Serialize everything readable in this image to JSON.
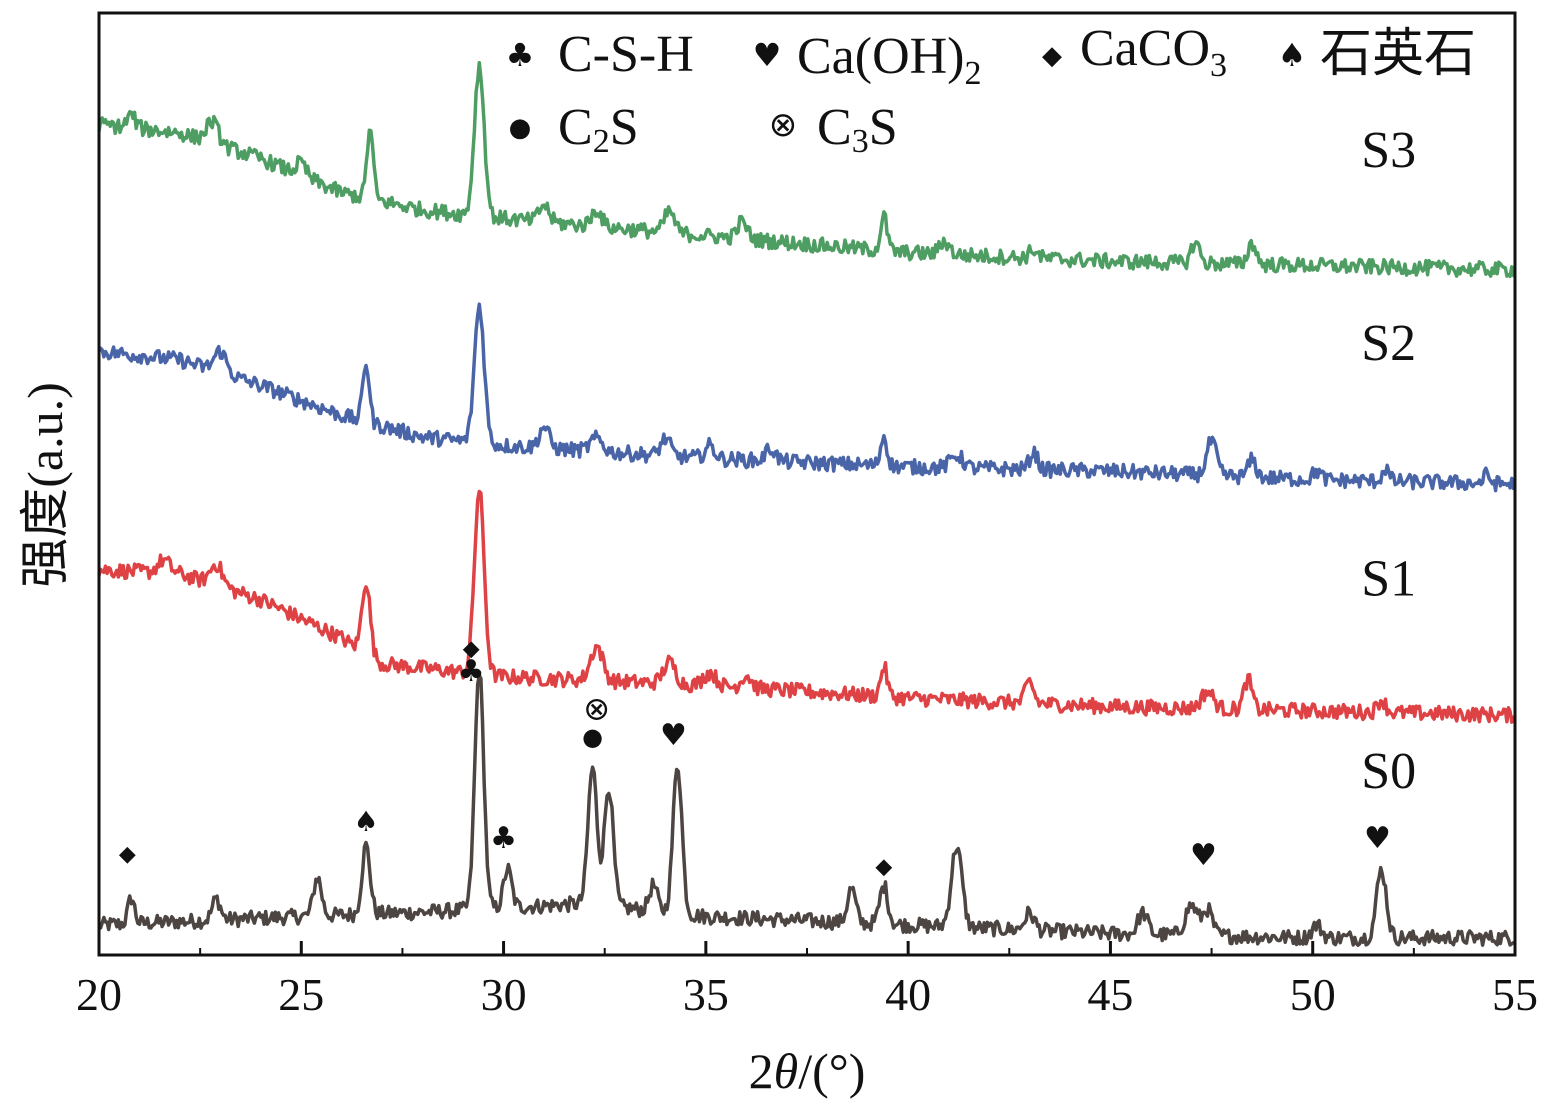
{
  "chart_data": {
    "type": "line",
    "xlabel_prefix": "2",
    "xlabel_theta": "θ",
    "xlabel_suffix": "/(°)",
    "ylabel": "强度(a.u.)",
    "xlim": [
      20,
      55
    ],
    "xticks": [
      20,
      25,
      30,
      35,
      40,
      45,
      50,
      55
    ],
    "grid": false,
    "legend": {
      "placement": "top",
      "entries": [
        {
          "symbol": "♣",
          "label": "C-S-H",
          "main": "C-S-H",
          "sub": ""
        },
        {
          "symbol": "♥",
          "label": "Ca(OH)2",
          "main": "Ca(OH)",
          "sub": "2"
        },
        {
          "symbol": "◆",
          "label": "CaCO3",
          "main": "CaCO",
          "sub": "3"
        },
        {
          "symbol": "♠",
          "label": "石英石",
          "main": "石英石",
          "sub": ""
        },
        {
          "symbol": "●",
          "label": "C2S",
          "main": "C",
          "sub": "2",
          "tail": "S"
        },
        {
          "symbol": "⊗",
          "label": "C3S",
          "main": "C",
          "sub": "3",
          "tail": "S"
        }
      ]
    },
    "series": [
      {
        "name": "S0",
        "color": "#4d4542",
        "offset": 0,
        "noise": 0.35,
        "baseline": [
          [
            20,
            0.7
          ],
          [
            25,
            0.9
          ],
          [
            28,
            1.0
          ],
          [
            32,
            1.2
          ],
          [
            35,
            0.9
          ],
          [
            40,
            0.7
          ],
          [
            45,
            0.5
          ],
          [
            50,
            0.4
          ],
          [
            55,
            0.4
          ]
        ],
        "peaks": [
          [
            20.8,
            0.6,
            0.08
          ],
          [
            22.9,
            0.5,
            0.1
          ],
          [
            25.4,
            0.9,
            0.1
          ],
          [
            26.6,
            1.6,
            0.1
          ],
          [
            29.4,
            5.6,
            0.11
          ],
          [
            30.1,
            0.9,
            0.1
          ],
          [
            32.2,
            3.2,
            0.11
          ],
          [
            32.6,
            2.8,
            0.11
          ],
          [
            33.7,
            0.6,
            0.1
          ],
          [
            34.3,
            3.5,
            0.11
          ],
          [
            38.6,
            0.8,
            0.1
          ],
          [
            39.4,
            0.9,
            0.1
          ],
          [
            41.2,
            1.9,
            0.13
          ],
          [
            43.0,
            0.4,
            0.12
          ],
          [
            45.8,
            0.5,
            0.12
          ],
          [
            47.0,
            0.7,
            0.15
          ],
          [
            47.4,
            0.6,
            0.12
          ],
          [
            50.1,
            0.3,
            0.12
          ],
          [
            51.7,
            1.6,
            0.12
          ]
        ]
      },
      {
        "name": "S1",
        "color": "#de4245",
        "offset": 5.5,
        "noise": 0.35,
        "baseline": [
          [
            20,
            3.5
          ],
          [
            22,
            3.4
          ],
          [
            24,
            2.8
          ],
          [
            26,
            1.9
          ],
          [
            27,
            1.3
          ],
          [
            30,
            1.0
          ],
          [
            35,
            0.8
          ],
          [
            40,
            0.5
          ],
          [
            45,
            0.3
          ],
          [
            50,
            0.2
          ],
          [
            55,
            0.1
          ]
        ],
        "peaks": [
          [
            21.6,
            0.3,
            0.15
          ],
          [
            22.9,
            0.5,
            0.15
          ],
          [
            26.6,
            1.7,
            0.1
          ],
          [
            29.4,
            4.3,
            0.12
          ],
          [
            32.3,
            0.8,
            0.15
          ],
          [
            34.1,
            0.5,
            0.15
          ],
          [
            35.1,
            0.3,
            0.15
          ],
          [
            36.0,
            0.3,
            0.12
          ],
          [
            39.4,
            0.7,
            0.08
          ],
          [
            43.0,
            0.5,
            0.1
          ],
          [
            47.4,
            0.4,
            0.15
          ],
          [
            48.4,
            0.7,
            0.1
          ],
          [
            51.7,
            0.3,
            0.1
          ]
        ]
      },
      {
        "name": "S2",
        "color": "#4a65a7",
        "offset": 11.0,
        "noise": 0.35,
        "baseline": [
          [
            20,
            3.1
          ],
          [
            22,
            2.9
          ],
          [
            24,
            2.3
          ],
          [
            26,
            1.6
          ],
          [
            28,
            1.1
          ],
          [
            30,
            0.9
          ],
          [
            35,
            0.6
          ],
          [
            40,
            0.4
          ],
          [
            45,
            0.3
          ],
          [
            50,
            0.1
          ],
          [
            55,
            0.0
          ]
        ],
        "peaks": [
          [
            23.0,
            0.5,
            0.15
          ],
          [
            26.6,
            1.4,
            0.08
          ],
          [
            29.4,
            3.2,
            0.12
          ],
          [
            31.0,
            0.5,
            0.12
          ],
          [
            32.3,
            0.3,
            0.15
          ],
          [
            34.0,
            0.4,
            0.12
          ],
          [
            35.1,
            0.3,
            0.12
          ],
          [
            36.6,
            0.3,
            0.12
          ],
          [
            39.4,
            0.7,
            0.08
          ],
          [
            41.2,
            0.3,
            0.15
          ],
          [
            43.1,
            0.4,
            0.1
          ],
          [
            47.5,
            0.8,
            0.12
          ],
          [
            48.5,
            0.4,
            0.1
          ],
          [
            50.1,
            0.2,
            0.1
          ],
          [
            51.8,
            0.3,
            0.08
          ],
          [
            54.3,
            0.2,
            0.08
          ]
        ]
      },
      {
        "name": "S3",
        "color": "#4e9d62",
        "offset": 15.8,
        "noise": 0.35,
        "baseline": [
          [
            20,
            3.6
          ],
          [
            22,
            3.4
          ],
          [
            24,
            2.8
          ],
          [
            26,
            2.0
          ],
          [
            28,
            1.6
          ],
          [
            30,
            1.4
          ],
          [
            35,
            1.0
          ],
          [
            40,
            0.6
          ],
          [
            45,
            0.4
          ],
          [
            50,
            0.3
          ],
          [
            55,
            0.2
          ]
        ],
        "peaks": [
          [
            20.8,
            0.3,
            0.1
          ],
          [
            22.8,
            0.5,
            0.15
          ],
          [
            25.0,
            0.3,
            0.12
          ],
          [
            26.7,
            1.6,
            0.08
          ],
          [
            29.4,
            3.5,
            0.12
          ],
          [
            31.0,
            0.4,
            0.12
          ],
          [
            32.3,
            0.4,
            0.12
          ],
          [
            34.1,
            0.5,
            0.12
          ],
          [
            35.9,
            0.4,
            0.12
          ],
          [
            39.4,
            0.8,
            0.08
          ],
          [
            40.9,
            0.3,
            0.12
          ],
          [
            43.1,
            0.2,
            0.1
          ],
          [
            47.1,
            0.5,
            0.1
          ],
          [
            48.5,
            0.5,
            0.1
          ]
        ]
      }
    ],
    "series_labels": [
      {
        "text": "S0",
        "x": 51.2,
        "y": 3.9
      },
      {
        "text": "S1",
        "x": 51.2,
        "y": 8.4
      },
      {
        "text": "S2",
        "x": 51.2,
        "y": 13.9
      },
      {
        "text": "S3",
        "x": 51.2,
        "y": 18.4
      }
    ],
    "phase_markers": [
      {
        "symbol": "◆",
        "phase": "CaCO3",
        "x": 20.7,
        "y": 2.2
      },
      {
        "symbol": "♠",
        "phase": "石英石",
        "x": 26.6,
        "y": 2.9
      },
      {
        "symbol": "◆",
        "phase": "CaCO3",
        "x": 29.2,
        "y": 7.0
      },
      {
        "symbol": "♣",
        "phase": "C-S-H",
        "x": 29.2,
        "y": 6.4
      },
      {
        "symbol": "♣",
        "phase": "C-S-H",
        "x": 30.0,
        "y": 2.5
      },
      {
        "symbol": "⊗",
        "phase": "C3S",
        "x": 32.3,
        "y": 5.5
      },
      {
        "symbol": "●",
        "phase": "C2S",
        "x": 32.2,
        "y": 4.9
      },
      {
        "symbol": "♥",
        "phase": "Ca(OH)2",
        "x": 34.2,
        "y": 4.9
      },
      {
        "symbol": "◆",
        "phase": "CaCO3",
        "x": 39.4,
        "y": 1.9
      },
      {
        "symbol": "♥",
        "phase": "Ca(OH)2",
        "x": 47.3,
        "y": 2.1
      },
      {
        "symbol": "♥",
        "phase": "Ca(OH)2",
        "x": 51.6,
        "y": 2.5
      }
    ]
  }
}
